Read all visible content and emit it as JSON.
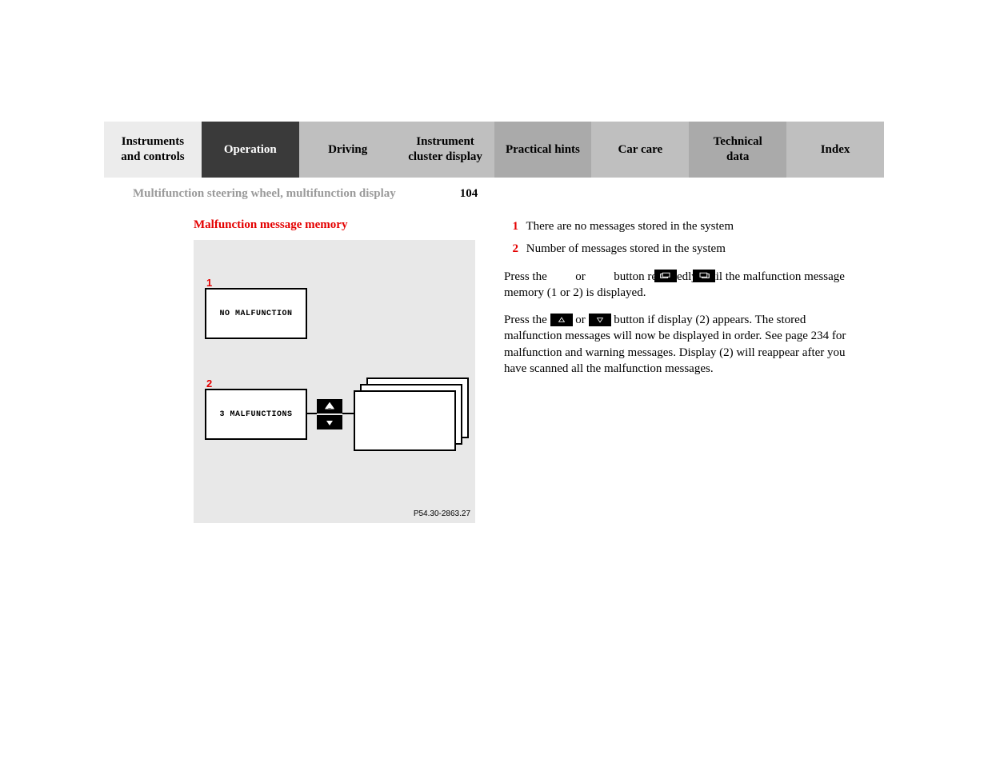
{
  "tabs": [
    {
      "label": "Instruments\nand controls",
      "style": "light"
    },
    {
      "label": "Operation",
      "style": "dark"
    },
    {
      "label": "Driving",
      "style": "mid"
    },
    {
      "label": "Instrument\ncluster display",
      "style": "mid"
    },
    {
      "label": "Practical hints",
      "style": "mid2"
    },
    {
      "label": "Car care",
      "style": "mid"
    },
    {
      "label": "Technical\ndata",
      "style": "mid2"
    },
    {
      "label": "Index",
      "style": "mid"
    }
  ],
  "section_title": "Multifunction steering wheel, multifunction display",
  "page_number": "104",
  "red_heading": "Malfunction message memory",
  "figure": {
    "callout1": "1",
    "callout2": "2",
    "box1_text": "NO MALFUNCTION",
    "box2_text": "3 MALFUNCTIONS",
    "ref": "P54.30-2863.27",
    "background": "#e8e8e8",
    "box_bg": "#ffffff",
    "box_border": "#000000",
    "callout_color": "#e40000"
  },
  "legend": [
    {
      "num": "1",
      "text": "There are no messages stored in the system"
    },
    {
      "num": "2",
      "text": "Number of messages stored in the system"
    }
  ],
  "para1_a": "Press the ",
  "para1_b": " or ",
  "para1_c": " button repeatedly until the malfunction message memory (1 or 2) is displayed.",
  "para2_a": "Press the ",
  "para2_b": " or ",
  "para2_c": " button if display (2) appears. The stored malfunction messages will now be displayed in order. See page 234 for malfunction and warning messages. Display (2) will reappear after you have scanned all the malfunction messages.",
  "colors": {
    "tab_light": "#ececec",
    "tab_dark": "#3a3a3a",
    "tab_mid": "#bfbfbf",
    "tab_mid2": "#aaaaaa",
    "accent_red": "#e40000",
    "muted": "#9a9a9a"
  }
}
